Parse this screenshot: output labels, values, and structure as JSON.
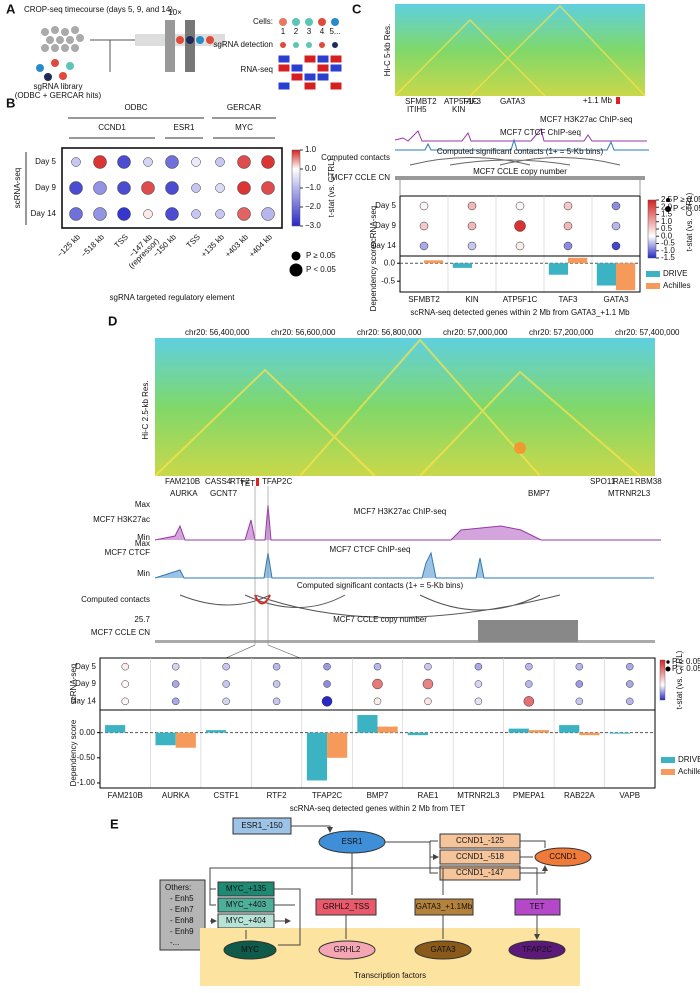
{
  "panel_a": {
    "label": "A",
    "title": "CROP-seq timecourse (days 5, 9, and 14)",
    "library": "sgRNA library",
    "library_note": "(ODBC + GERCAR hits)",
    "device": "10×",
    "cells": "Cells:",
    "cell_ids": [
      "1",
      "2",
      "3",
      "4",
      "5..."
    ],
    "detection": "sgRNA detection",
    "rnaseq": "RNA-seq"
  },
  "panel_b": {
    "label": "B",
    "y_axis": "scRNA-seq",
    "x_axis": "sgRNA targeted regulatory element",
    "rows": [
      "Day 5",
      "Day 9",
      "Day 14"
    ],
    "groups": [
      {
        "name": "ODBC",
        "subgroups": [
          {
            "name": "CCND1",
            "columns": [
              {
                "name": "−125 kb"
              },
              {
                "name": "−518 kb"
              },
              {
                "name": "TSS"
              },
              {
                "name": "−147 kb",
                "note": "(repressor)"
              }
            ]
          },
          {
            "name": "ESR1",
            "columns": [
              {
                "name": "−150 kb"
              },
              {
                "name": "TSS"
              }
            ]
          }
        ]
      },
      {
        "name": "GERCAR",
        "subgroups": [
          {
            "name": "MYC",
            "columns": [
              {
                "name": "+135 kb"
              },
              {
                "name": "+403 kb"
              },
              {
                "name": "+404 kb"
              }
            ]
          }
        ]
      }
    ],
    "tstat": [
      [
        -0.8,
        0.9,
        -2.5,
        -0.6,
        -2.0,
        -0.3,
        -0.8,
        0.8,
        0.9
      ],
      [
        -2.5,
        -1.5,
        -2.5,
        0.8,
        -2.5,
        -0.8,
        -0.5,
        0.9,
        0.8
      ],
      [
        -2.0,
        -1.5,
        -2.8,
        0.1,
        -2.5,
        -0.8,
        -0.8,
        0.7,
        -1.0
      ]
    ],
    "significant": [
      [
        false,
        true,
        true,
        false,
        true,
        false,
        false,
        true,
        true
      ],
      [
        true,
        true,
        true,
        true,
        true,
        false,
        false,
        true,
        true
      ],
      [
        true,
        true,
        true,
        false,
        true,
        false,
        false,
        true,
        true
      ]
    ],
    "colorbar": {
      "label": "t-stat (vs. CTRL)",
      "lim": [
        -3,
        1
      ],
      "ticks": [
        {
          "value": 1,
          "label": "1.0"
        },
        {
          "value": 0,
          "label": "0.0"
        },
        {
          "value": -1,
          "label": "−1.0"
        },
        {
          "value": -2,
          "label": "−2.0"
        },
        {
          "value": -3,
          "label": "−3.0"
        }
      ]
    },
    "size_legend": [
      "P ≥ 0.05",
      "P < 0.05"
    ]
  },
  "panel_c": {
    "label": "C",
    "hic_label": "Hi-C 5-kb Res.",
    "genes_track": [
      "SFMBT2",
      "ITIH5",
      "ATP5F1C",
      "KIN",
      "TAF3",
      "GATA3"
    ],
    "distance": "+1.1 Mb",
    "h3k27ac": "MCF7 H3K27ac ChIP-seq",
    "ctcf": "MCF7 CTCF ChIP-seq",
    "contacts": "Computed contacts",
    "contacts_note": "Computed significant contacts (1+ = 5-Kb bins)",
    "cn": "MCF7 CCLE copy number",
    "cn_label": "MCF7 CCLE CN",
    "y_axis": "scRNA-seq",
    "rows": [
      "Day 5",
      "Day 9",
      "Day 14"
    ],
    "genes": [
      "SFMBT2",
      "KIN",
      "ATP5F1C",
      "TAF3",
      "GATA3"
    ],
    "tstat": [
      [
        0.1,
        0.8,
        0.1,
        0.6,
        -0.8
      ],
      [
        0.6,
        0.8,
        2.3,
        0.8,
        -0.5
      ],
      [
        -0.6,
        -0.4,
        0.2,
        -0.8,
        -1.3
      ]
    ],
    "significant": [
      [
        false,
        false,
        false,
        false,
        false
      ],
      [
        false,
        false,
        true,
        false,
        false
      ],
      [
        false,
        false,
        false,
        false,
        false
      ]
    ],
    "colorbar": {
      "label": "t-stat (vs. CTRL)",
      "lim": [
        -1.5,
        2.5
      ],
      "ticks": [
        2.5,
        {
          "value": 2,
          "label": "2.0"
        },
        1.5,
        {
          "value": 1,
          "label": "1.0"
        },
        0.5,
        {
          "value": 0,
          "label": "0.0"
        },
        -0.5,
        {
          "value": -1,
          "label": "-1.0"
        },
        -1.5
      ]
    },
    "size_legend": [
      "P ≥ 0.05",
      "P < 0.05"
    ],
    "dependency": {
      "y_axis": "Dependency score",
      "x_axis": "scRNA-seq detected genes within 2 Mb from GATA3_+1.1 Mb",
      "ylim": [
        -0.8,
        0.2
      ],
      "yticks": [
        {
          "value": 0,
          "label": "0.0"
        },
        {
          "value": -0.5,
          "label": "-0.5"
        }
      ],
      "series": [
        {
          "name": "DRIVE",
          "color": "#3bb3c3",
          "values": [
            null,
            -0.13,
            null,
            -0.32,
            -0.62
          ]
        },
        {
          "name": "Achilles",
          "color": "#f59a5a",
          "values": [
            0.08,
            null,
            null,
            0.15,
            -0.75
          ]
        }
      ]
    }
  },
  "panel_d": {
    "label": "D",
    "hic_label": "Hi-C 2.5-kb Res.",
    "coords": [
      "chr20: 56,400,000",
      "chr20: 56,600,000",
      "chr20: 56,800,000",
      "chr20: 57,000,000",
      "chr20: 57,200,000",
      "chr20: 57,400,000"
    ],
    "genes_track": [
      "FAM210B",
      "CASS4",
      "RTF2",
      "AURKA",
      "GCNT7",
      "TET",
      "TFAP2C",
      "BMP7",
      "SPO11",
      "RAE1",
      "RBM38",
      "MTRNR2L3"
    ],
    "h3k27ac_side": "MCF7 H3K27ac",
    "h3k27ac": "MCF7 H3K27ac ChIP-seq",
    "ctcf_side": "MCF7 CTCF",
    "ctcf": "MCF7 CTCF ChIP-seq",
    "max": "Max",
    "min": "Min",
    "contacts": "Computed contacts",
    "contacts_note": "Computed significant contacts (1+ = 5-Kb bins)",
    "cn_max": "25.7",
    "cn_side": "MCF7 CCLE CN",
    "cn": "MCF7 CCLE copy number",
    "y_axis": "scRNA-seq",
    "rows": [
      "Day 5",
      "Day 9",
      "Day 14"
    ],
    "genes": [
      "FAM210B",
      "AURKA",
      "CSTF1",
      "RTF2",
      "TFAP2C",
      "BMP7",
      "RAE1",
      "MTRNR2L3",
      "PMEPA1",
      "RAB22A",
      "VAPB"
    ],
    "tstat": [
      [
        0.2,
        -0.3,
        -0.4,
        -0.5,
        -0.7,
        -0.5,
        -0.4,
        -0.6,
        -0.5,
        -0.5,
        -0.6
      ],
      [
        0.1,
        -0.6,
        -0.4,
        -0.4,
        -0.8,
        1.5,
        1.4,
        -0.3,
        -0.5,
        -0.7,
        -0.6
      ],
      [
        0.1,
        -0.6,
        -0.3,
        -0.4,
        -1.5,
        0.2,
        0.3,
        -0.2,
        1.6,
        -0.4,
        -0.5
      ]
    ],
    "significant": [
      [
        false,
        false,
        false,
        false,
        false,
        false,
        false,
        false,
        false,
        false,
        false
      ],
      [
        false,
        false,
        false,
        false,
        false,
        true,
        true,
        false,
        false,
        false,
        false
      ],
      [
        false,
        false,
        false,
        false,
        true,
        false,
        false,
        false,
        true,
        false,
        false
      ]
    ],
    "colorbar_label": "t-stat (vs. CTRL)",
    "size_legend": [
      "P ≥ 0.05",
      "P < 0.05"
    ],
    "dependency": {
      "y_axis": "Dependency score",
      "x_axis": "scRNA-seq detected genes within 2 Mb from TET",
      "ylim": [
        -1.1,
        0.45
      ],
      "yticks": [
        {
          "value": 0,
          "label": "0.00"
        },
        {
          "value": -0.5,
          "label": "-0.50"
        },
        {
          "value": -1,
          "label": "-1.00"
        }
      ],
      "series": [
        {
          "name": "DRIVE",
          "color": "#3bb3c3",
          "values": [
            0.15,
            -0.25,
            0.05,
            null,
            -0.95,
            0.35,
            -0.05,
            null,
            0.08,
            0.15,
            -0.02
          ]
        },
        {
          "name": "Achilles",
          "color": "#f59a5a",
          "values": [
            null,
            -0.3,
            null,
            null,
            -0.5,
            0.12,
            null,
            null,
            0.05,
            -0.05,
            null
          ]
        }
      ]
    }
  },
  "panel_e": {
    "label": "E",
    "nodes": {
      "esr1_150": "ESR1_-150",
      "esr1": "ESR1",
      "ccnd1_125": "CCND1_-125",
      "ccnd1_518": "CCND1_-518",
      "ccnd1_147": "CCND1_-147",
      "ccnd1": "CCND1",
      "others": [
        "Others:",
        "- Enh5",
        "- Enh7",
        "- Enh8",
        "- Enh9",
        "-..."
      ],
      "myc_135": "MYC_+135",
      "myc_403": "MYC_+403",
      "myc_404": "MYC_+404",
      "grhl2_tss": "GRHL2_TSS",
      "gata3_11": "GATA3_+1.1Mb",
      "tet": "TET",
      "myc": "MYC",
      "grhl2": "GRHL2",
      "gata3": "GATA3",
      "tfap2c": "TFAP2C"
    },
    "band": "Transcription factors"
  }
}
